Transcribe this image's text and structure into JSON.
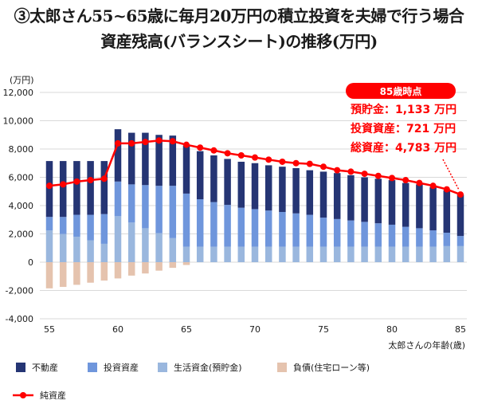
{
  "title_line1": "③太郎さん55~65歳に毎月20万円の積立投資を夫婦で行う場合",
  "title_line2": "資産残高(バランスシート)の推移(万円)",
  "chart_data": {
    "type": "bar",
    "stacked": true,
    "ylabel": "(万円)",
    "xlabel": "太郎さんの年齢(歳)",
    "ylim": [
      -4000,
      12000
    ],
    "yticks": [
      -4000,
      -2000,
      0,
      2000,
      4000,
      6000,
      8000,
      10000,
      12000
    ],
    "ytick_labels": [
      "-4,000",
      "-2,000",
      "0",
      "2,000",
      "4,000",
      "6,000",
      "8,000",
      "10,000",
      "12,000"
    ],
    "xticks": [
      55,
      60,
      65,
      70,
      75,
      80,
      85
    ],
    "x": [
      55,
      56,
      57,
      58,
      59,
      60,
      61,
      62,
      63,
      64,
      65,
      66,
      67,
      68,
      69,
      70,
      71,
      72,
      73,
      74,
      75,
      76,
      77,
      78,
      79,
      80,
      81,
      82,
      83,
      84,
      85
    ],
    "grid": true,
    "legend_position": "bottom",
    "series": [
      {
        "name": "生活資金(預貯金)",
        "color": "#9ab7de",
        "kind": "bar",
        "values": [
          2250,
          2000,
          1800,
          1550,
          1300,
          3250,
          2800,
          2400,
          2050,
          1700,
          1100,
          1100,
          1100,
          1100,
          1100,
          1100,
          1100,
          1100,
          1100,
          1100,
          1100,
          1100,
          1100,
          1100,
          1100,
          1100,
          1100,
          1100,
          1100,
          1133,
          1133
        ]
      },
      {
        "name": "投資資産",
        "color": "#6f96dc",
        "kind": "bar",
        "values": [
          950,
          1200,
          1550,
          1800,
          2100,
          2450,
          2700,
          3050,
          3350,
          3700,
          3750,
          3350,
          3150,
          2950,
          2750,
          2650,
          2550,
          2450,
          2350,
          2250,
          2050,
          1950,
          1850,
          1750,
          1650,
          1550,
          1400,
          1300,
          1150,
          950,
          721
        ]
      },
      {
        "name": "不動産",
        "color": "#253574",
        "kind": "bar",
        "values": [
          3950,
          3950,
          3800,
          3800,
          3750,
          3700,
          3650,
          3700,
          3600,
          3550,
          3400,
          3400,
          3300,
          3250,
          3250,
          3250,
          3200,
          3200,
          3200,
          3150,
          3250,
          3250,
          3200,
          3150,
          3150,
          3150,
          3100,
          3100,
          3050,
          3000,
          2929
        ]
      },
      {
        "name": "負債(住宅ローン等)",
        "color": "#e5c3ae",
        "kind": "bar",
        "values": [
          -1850,
          -1750,
          -1600,
          -1450,
          -1300,
          -1150,
          -950,
          -800,
          -600,
          -400,
          -200,
          0,
          0,
          0,
          0,
          0,
          0,
          0,
          0,
          0,
          0,
          0,
          0,
          0,
          0,
          0,
          0,
          0,
          0,
          0,
          0
        ]
      },
      {
        "name": "純資産",
        "color": "#ff0000",
        "kind": "line",
        "values": [
          5400,
          5500,
          5700,
          5800,
          5900,
          8400,
          8400,
          8500,
          8600,
          8550,
          8300,
          8100,
          7900,
          7700,
          7550,
          7400,
          7250,
          7100,
          7000,
          6950,
          6750,
          6500,
          6400,
          6250,
          6100,
          5950,
          5800,
          5600,
          5400,
          5150,
          4783
        ]
      }
    ],
    "annotation": {
      "title": "85歳時点",
      "lines": [
        "預貯金：1,133 万円",
        "投資資産：721 万円",
        "総資産：4,783 万円"
      ]
    }
  },
  "colors": {
    "accent": "#ff0000",
    "grid": "#d9d9d9",
    "text": "#1a1a1a"
  }
}
